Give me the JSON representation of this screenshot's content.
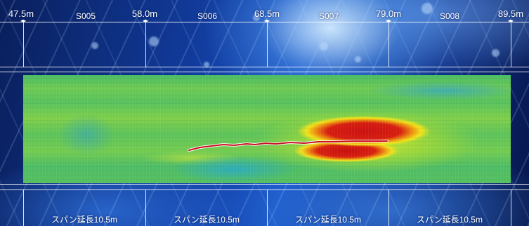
{
  "distances": [
    "47.5m",
    "58.0m",
    "68.5m",
    "79.0m",
    "89.5m"
  ],
  "segments": [
    "S005",
    "S006",
    "S007",
    "S008"
  ],
  "span_labels": [
    "スパン延長10.5m",
    "スパン延長10.5m",
    "スパン延長10.5m",
    "スパン延長10.5m"
  ],
  "heatmap": {
    "palette": [
      "#1f8fd0",
      "#4fbd66",
      "#f0e020",
      "#ee8a10",
      "#cc1010"
    ],
    "crack_color": "#c8101e"
  }
}
